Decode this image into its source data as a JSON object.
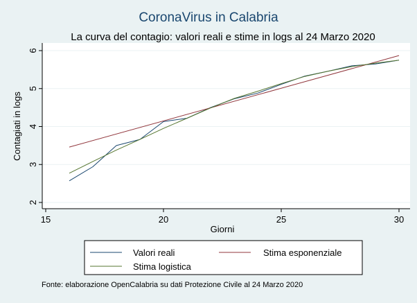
{
  "chart_data": {
    "type": "line",
    "title": "CoronaVirus in Calabria",
    "subtitle": "La curva del contagio: valori reali e stime in logs al 24 Marzo 2020",
    "xlabel": "Giorni",
    "ylabel": "Contagiati in logs",
    "xlim": [
      15,
      30
    ],
    "ylim": [
      1.8,
      6.2
    ],
    "xticks": [
      15,
      20,
      25,
      30
    ],
    "yticks": [
      2,
      3,
      4,
      5,
      6
    ],
    "grid": "horizontal",
    "legend_position": "bottom",
    "series": [
      {
        "name": "Valori reali",
        "color": "#1a476f",
        "x": [
          16,
          17,
          18,
          19,
          20,
          21,
          22,
          23,
          24,
          25,
          26,
          27,
          28,
          29,
          30
        ],
        "y": [
          2.57,
          2.94,
          3.5,
          3.66,
          4.13,
          4.22,
          4.5,
          4.73,
          4.88,
          5.11,
          5.33,
          5.46,
          5.6,
          5.65,
          5.75
        ]
      },
      {
        "name": "Stima esponenziale",
        "color": "#90353b",
        "x": [
          16,
          30
        ],
        "y": [
          3.46,
          5.87
        ]
      },
      {
        "name": "Stima logistica",
        "color": "#55752f",
        "x": [
          16,
          17,
          18,
          19,
          20,
          21,
          22,
          23,
          24,
          25,
          26,
          27,
          28,
          29,
          30
        ],
        "y": [
          2.77,
          3.08,
          3.38,
          3.66,
          3.95,
          4.22,
          4.49,
          4.74,
          4.93,
          5.13,
          5.32,
          5.46,
          5.58,
          5.67,
          5.75
        ]
      }
    ]
  },
  "note": "Fonte: elaborazione OpenCalabria su dati Protezione Civile al 24 Marzo 2020"
}
